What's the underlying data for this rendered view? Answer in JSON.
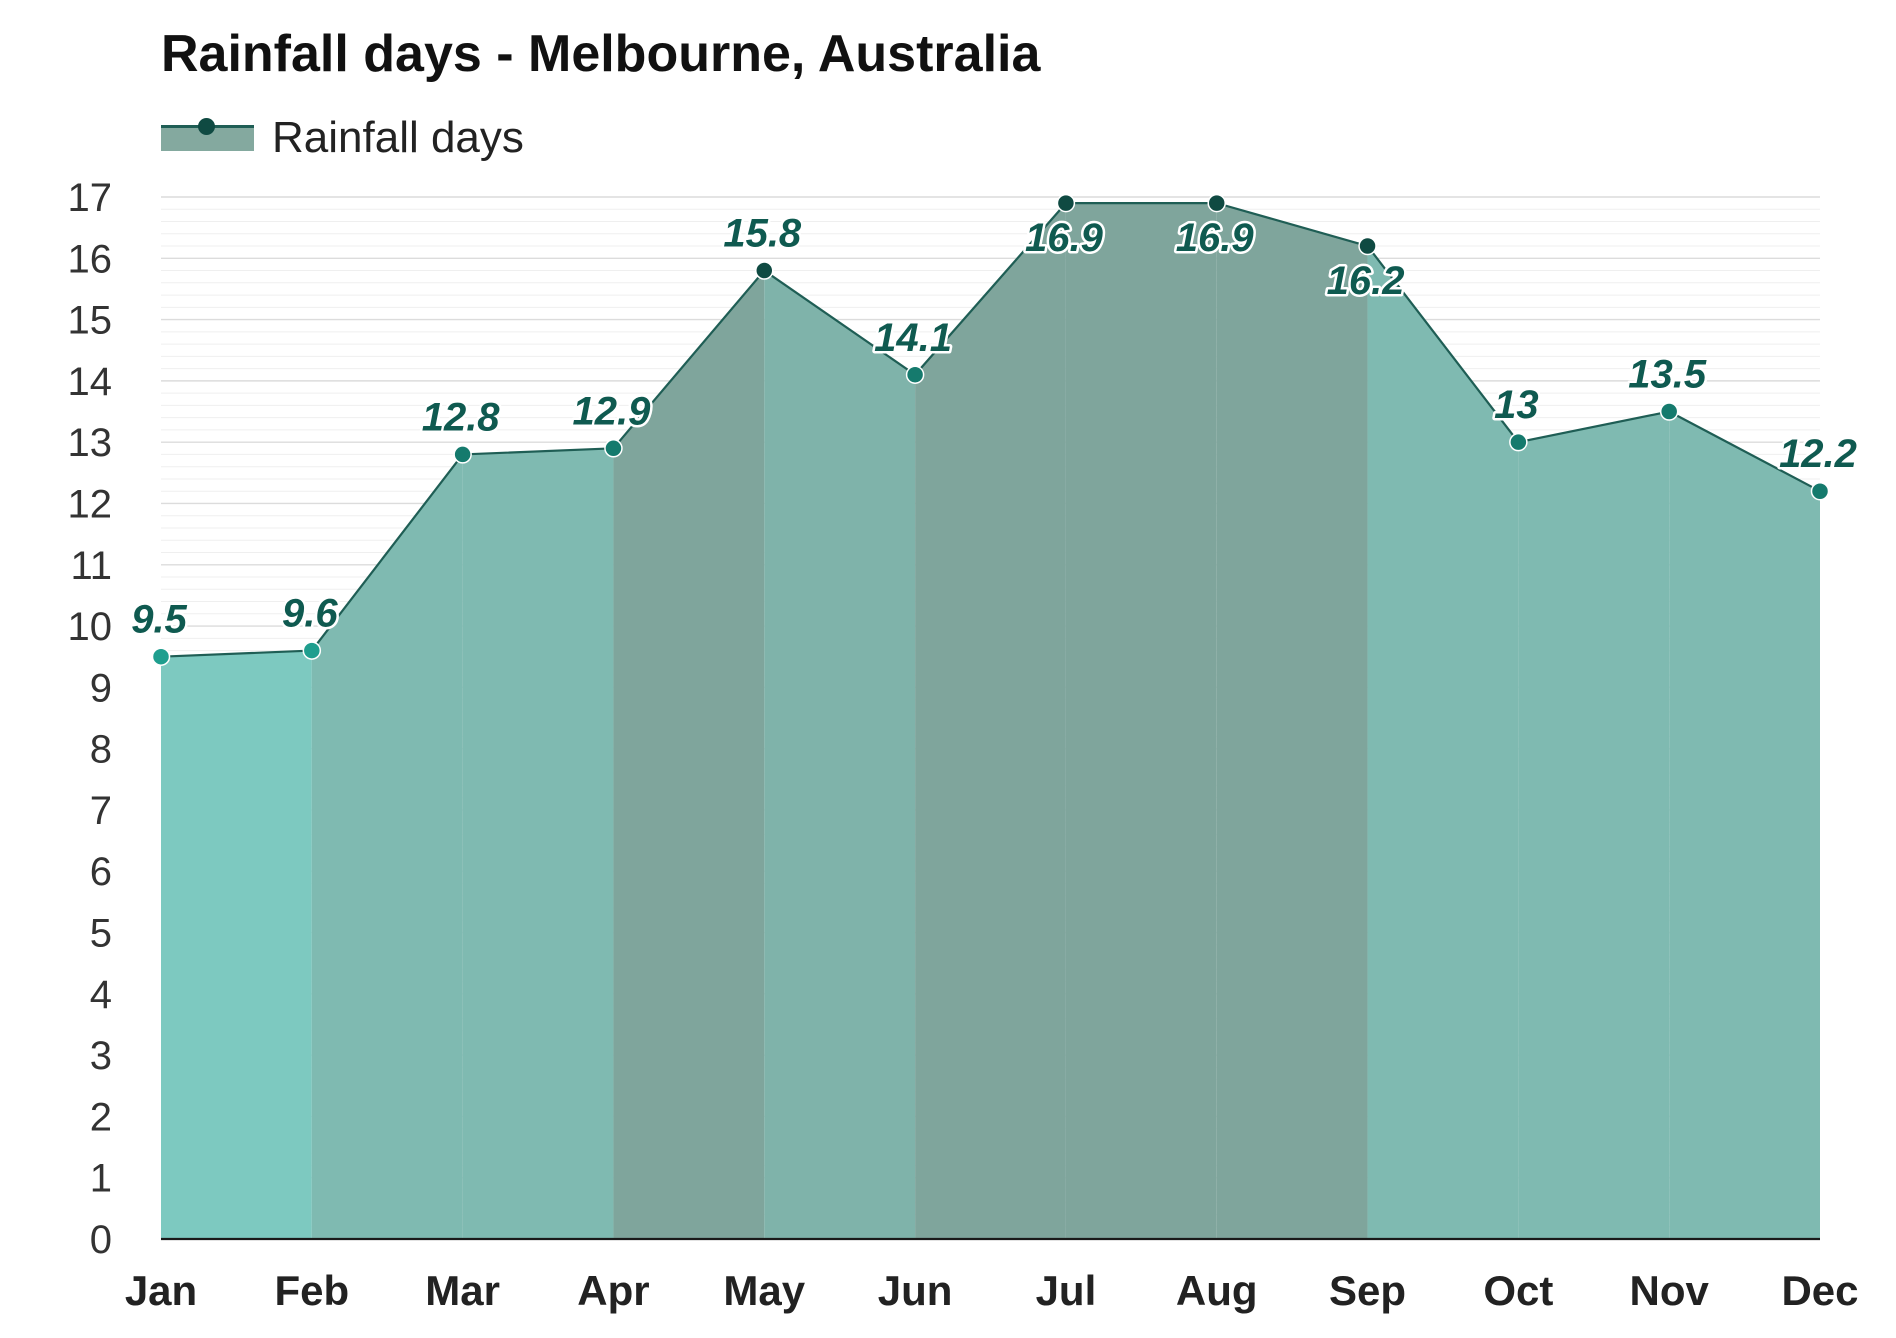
{
  "chart_data": {
    "type": "area",
    "title": "Rainfall days - Melbourne, Australia",
    "categories": [
      "Jan",
      "Feb",
      "Mar",
      "Apr",
      "May",
      "Jun",
      "Jul",
      "Aug",
      "Sep",
      "Oct",
      "Nov",
      "Dec"
    ],
    "series": [
      {
        "name": "Rainfall days",
        "values": [
          9.5,
          9.6,
          12.8,
          12.9,
          15.8,
          14.1,
          16.9,
          16.9,
          16.2,
          13,
          13.5,
          12.2
        ],
        "data_labels": [
          "9.5",
          "9.6",
          "12.8",
          "12.9",
          "15.8",
          "14.1",
          "16.9",
          "16.9",
          "16.2",
          "13",
          "13.5",
          "12.2"
        ]
      }
    ],
    "yticks": [
      "0",
      "1",
      "2",
      "3",
      "4",
      "5",
      "6",
      "7",
      "8",
      "9",
      "10",
      "11",
      "12",
      "13",
      "14",
      "15",
      "16",
      "17"
    ],
    "ylim": [
      0,
      17
    ],
    "grid": true,
    "legend_position": "top-left",
    "colors": {
      "line": "#1f5e55",
      "segment_fills": [
        "#7dc9c0",
        "#7fbab1",
        "#7fbab1",
        "#7fa59c",
        "#7fb3aa",
        "#7fa59c",
        "#7fa59c",
        "#7fa59c",
        "#7fbab1",
        "#7fbab1",
        "#7fbab1"
      ],
      "marker_fills": [
        "#1f9e8e",
        "#1f9e8e",
        "#157a6d",
        "#157a6d",
        "#0f4a42",
        "#157a6d",
        "#0f4a42",
        "#0f4a42",
        "#0f4a42",
        "#157a6d",
        "#157a6d",
        "#157a6d"
      ],
      "label": "#0f5a50"
    }
  }
}
